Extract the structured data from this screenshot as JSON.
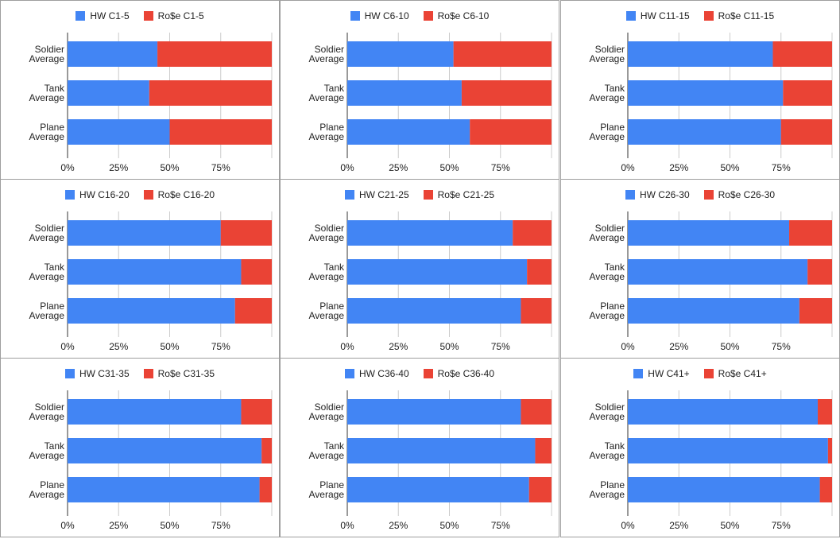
{
  "colors": {
    "hw": "#4285f4",
    "rose": "#ea4335",
    "grid": "#cccccc",
    "axis": "#333333",
    "text": "#222222"
  },
  "chart_data": [
    {
      "type": "bar",
      "stacked": "percent",
      "orientation": "horizontal",
      "categories": [
        "Soldier\nAverage",
        "Tank\nAverage",
        "Plane\nAverage"
      ],
      "series": [
        {
          "name": "HW C1-5",
          "values": [
            44,
            40,
            50
          ]
        },
        {
          "name": "Ro$e C1-5",
          "values": [
            56,
            60,
            50
          ]
        }
      ],
      "xticks": [
        "0%",
        "25%",
        "50%",
        "75%"
      ],
      "xlim": [
        0,
        100
      ],
      "legend_position": "top"
    },
    {
      "type": "bar",
      "stacked": "percent",
      "orientation": "horizontal",
      "categories": [
        "Soldier\nAverage",
        "Tank\nAverage",
        "Plane\nAverage"
      ],
      "series": [
        {
          "name": "HW C6-10",
          "values": [
            52,
            56,
            60
          ]
        },
        {
          "name": "Ro$e C6-10",
          "values": [
            48,
            44,
            40
          ]
        }
      ],
      "xticks": [
        "0%",
        "25%",
        "50%",
        "75%"
      ],
      "xlim": [
        0,
        100
      ],
      "legend_position": "top"
    },
    {
      "type": "bar",
      "stacked": "percent",
      "orientation": "horizontal",
      "categories": [
        "Soldier\nAverage",
        "Tank\nAverage",
        "Plane\nAverage"
      ],
      "series": [
        {
          "name": "HW C11-15",
          "values": [
            71,
            76,
            75
          ]
        },
        {
          "name": "Ro$e C11-15",
          "values": [
            29,
            24,
            25
          ]
        }
      ],
      "xticks": [
        "0%",
        "25%",
        "50%",
        "75%"
      ],
      "xlim": [
        0,
        100
      ],
      "legend_position": "top"
    },
    {
      "type": "bar",
      "stacked": "percent",
      "orientation": "horizontal",
      "categories": [
        "Soldier\nAverage",
        "Tank\nAverage",
        "Plane\nAverage"
      ],
      "series": [
        {
          "name": "HW C16-20",
          "values": [
            75,
            85,
            82
          ]
        },
        {
          "name": "Ro$e C16-20",
          "values": [
            25,
            15,
            18
          ]
        }
      ],
      "xticks": [
        "0%",
        "25%",
        "50%",
        "75%"
      ],
      "xlim": [
        0,
        100
      ],
      "legend_position": "top"
    },
    {
      "type": "bar",
      "stacked": "percent",
      "orientation": "horizontal",
      "categories": [
        "Soldier\nAverage",
        "Tank\nAverage",
        "Plane\nAverage"
      ],
      "series": [
        {
          "name": "HW C21-25",
          "values": [
            81,
            88,
            85
          ]
        },
        {
          "name": "Ro$e C21-25",
          "values": [
            19,
            12,
            15
          ]
        }
      ],
      "xticks": [
        "0%",
        "25%",
        "50%",
        "75%"
      ],
      "xlim": [
        0,
        100
      ],
      "legend_position": "top"
    },
    {
      "type": "bar",
      "stacked": "percent",
      "orientation": "horizontal",
      "categories": [
        "Soldier\nAverage",
        "Tank\nAverage",
        "Plane\nAverage"
      ],
      "series": [
        {
          "name": "HW C26-30",
          "values": [
            79,
            88,
            84
          ]
        },
        {
          "name": "Ro$e C26-30",
          "values": [
            21,
            12,
            16
          ]
        }
      ],
      "xticks": [
        "0%",
        "25%",
        "50%",
        "75%"
      ],
      "xlim": [
        0,
        100
      ],
      "legend_position": "top"
    },
    {
      "type": "bar",
      "stacked": "percent",
      "orientation": "horizontal",
      "categories": [
        "Soldier\nAverage",
        "Tank\nAverage",
        "Plane\nAverage"
      ],
      "series": [
        {
          "name": "HW C31-35",
          "values": [
            85,
            95,
            94
          ]
        },
        {
          "name": "Ro$e C31-35",
          "values": [
            15,
            5,
            6
          ]
        }
      ],
      "xticks": [
        "0%",
        "25%",
        "50%",
        "75%"
      ],
      "xlim": [
        0,
        100
      ],
      "legend_position": "top"
    },
    {
      "type": "bar",
      "stacked": "percent",
      "orientation": "horizontal",
      "categories": [
        "Soldier\nAverage",
        "Tank\nAverage",
        "Plane\nAverage"
      ],
      "series": [
        {
          "name": "HW C36-40",
          "values": [
            85,
            92,
            89
          ]
        },
        {
          "name": "Ro$e C36-40",
          "values": [
            15,
            8,
            11
          ]
        }
      ],
      "xticks": [
        "0%",
        "25%",
        "50%",
        "75%"
      ],
      "xlim": [
        0,
        100
      ],
      "legend_position": "top"
    },
    {
      "type": "bar",
      "stacked": "percent",
      "orientation": "horizontal",
      "categories": [
        "Soldier\nAverage",
        "Tank\nAverage",
        "Plane\nAverage"
      ],
      "series": [
        {
          "name": "HW C41+",
          "values": [
            93,
            98,
            94
          ]
        },
        {
          "name": "Ro$e C41+",
          "values": [
            7,
            2,
            6
          ]
        }
      ],
      "xticks": [
        "0%",
        "25%",
        "50%",
        "75%"
      ],
      "xlim": [
        0,
        100
      ],
      "legend_position": "top"
    }
  ]
}
